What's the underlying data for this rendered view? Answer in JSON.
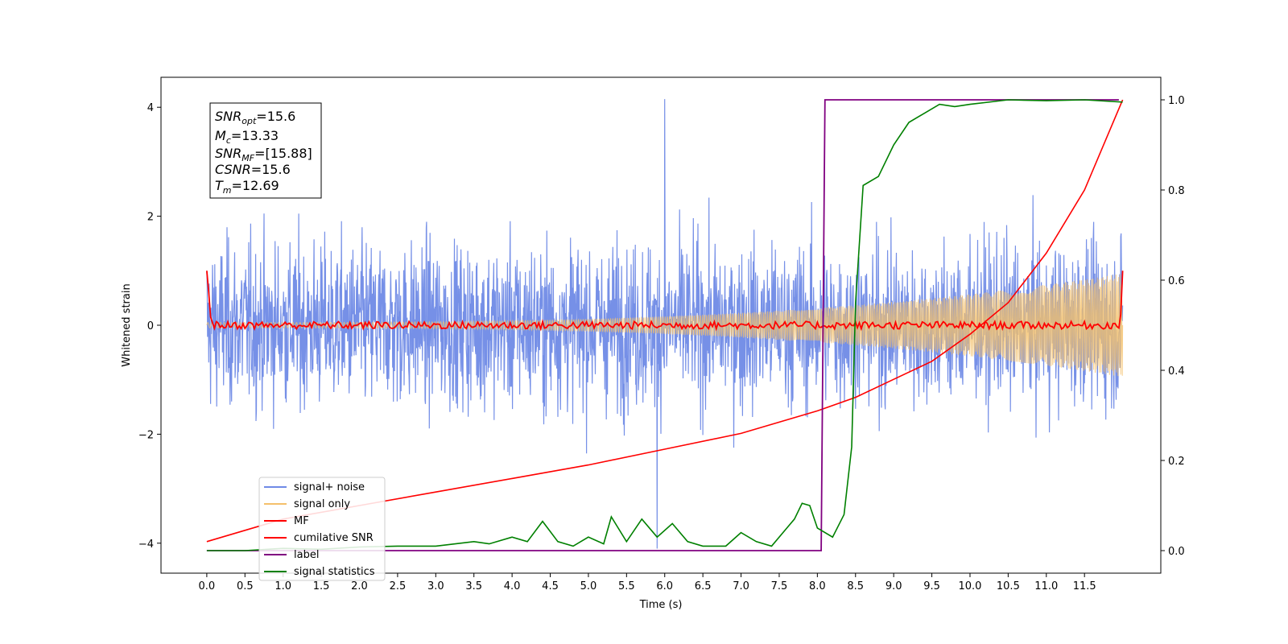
{
  "chart_data": {
    "type": "line",
    "xlabel": "Time (s)",
    "ylabel": "Whitened strain",
    "xlim": [
      -0.6,
      12.5
    ],
    "ylim": [
      -4.55,
      4.55
    ],
    "y2lim": [
      -0.05,
      1.05
    ],
    "x_ticks": [
      "0.0",
      "0.5",
      "1.0",
      "1.5",
      "2.0",
      "2.5",
      "3.0",
      "3.5",
      "4.0",
      "4.5",
      "5.0",
      "5.5",
      "6.0",
      "6.5",
      "7.0",
      "7.5",
      "8.0",
      "8.5",
      "9.0",
      "9.5",
      "10.0",
      "10.5",
      "11.0",
      "11.5"
    ],
    "y_ticks": [
      "4",
      "2",
      "0",
      "−2",
      "−4"
    ],
    "y2_ticks": [
      "1.0",
      "0.8",
      "0.6",
      "0.4",
      "0.2",
      "0.0"
    ],
    "annotation": [
      {
        "base": "SNR",
        "sub": "opt",
        "value": "=15.6"
      },
      {
        "base": "M",
        "sub": "c",
        "value": "=13.33"
      },
      {
        "base": "SNR",
        "sub": "MF",
        "value": "=[15.88]"
      },
      {
        "base": "CSNR",
        "sub": "",
        "value": "=15.6"
      },
      {
        "base": "T",
        "sub": "m",
        "value": "=12.69"
      }
    ],
    "legend": {
      "placement": "lower-left",
      "entries": [
        "signal+ noise",
        "signal only",
        "MF",
        "cumilative SNR",
        "label",
        "signal statistics"
      ]
    },
    "series": [
      {
        "name": "signal+ noise",
        "color": "#6f8ae6",
        "axis": "left",
        "x_range": [
          0,
          12.0
        ],
        "approx_std": 1.05,
        "max_peak": 4.15,
        "min_peak": -4.1
      },
      {
        "name": "signal only",
        "color": "#f4c06b",
        "axis": "left",
        "x_range": [
          0,
          12.0
        ],
        "envelope_start": 0.05,
        "envelope_end": 0.95
      },
      {
        "name": "MF",
        "color": "#ff0000",
        "axis": "left",
        "x_range": [
          0,
          12.0
        ],
        "start_value": 1.0,
        "end_value": 1.0,
        "baseline": 0.0
      },
      {
        "name": "cumilative SNR",
        "color": "#ff0000",
        "axis": "right",
        "x": [
          0.0,
          1.0,
          2.0,
          3.0,
          4.0,
          5.0,
          6.0,
          7.0,
          8.0,
          8.5,
          9.0,
          9.5,
          10.0,
          10.5,
          11.0,
          11.5,
          12.0
        ],
        "y": [
          0.02,
          0.07,
          0.1,
          0.13,
          0.16,
          0.19,
          0.225,
          0.26,
          0.31,
          0.34,
          0.38,
          0.42,
          0.48,
          0.55,
          0.66,
          0.8,
          1.0
        ]
      },
      {
        "name": "label",
        "color": "#800080",
        "axis": "right",
        "x": [
          0.0,
          8.05,
          8.1,
          11.95
        ],
        "y": [
          0.0,
          0.0,
          1.0,
          1.0
        ]
      },
      {
        "name": "signal statistics",
        "color": "#008000",
        "axis": "right",
        "x": [
          0.0,
          0.5,
          1.0,
          1.5,
          2.0,
          2.5,
          3.0,
          3.5,
          3.7,
          4.0,
          4.2,
          4.4,
          4.6,
          4.8,
          5.0,
          5.2,
          5.3,
          5.5,
          5.7,
          5.9,
          6.1,
          6.3,
          6.5,
          6.8,
          7.0,
          7.2,
          7.4,
          7.6,
          7.7,
          7.8,
          7.9,
          8.0,
          8.2,
          8.35,
          8.45,
          8.5,
          8.6,
          8.8,
          9.0,
          9.2,
          9.4,
          9.6,
          9.8,
          10.0,
          10.5,
          11.0,
          11.5,
          12.0
        ],
        "y": [
          0.0,
          0.0,
          0.005,
          0.003,
          0.008,
          0.01,
          0.01,
          0.02,
          0.015,
          0.03,
          0.02,
          0.065,
          0.02,
          0.01,
          0.03,
          0.015,
          0.075,
          0.02,
          0.07,
          0.03,
          0.06,
          0.02,
          0.01,
          0.01,
          0.04,
          0.02,
          0.01,
          0.05,
          0.07,
          0.105,
          0.1,
          0.05,
          0.03,
          0.08,
          0.23,
          0.55,
          0.81,
          0.83,
          0.9,
          0.95,
          0.97,
          0.99,
          0.985,
          0.99,
          1.0,
          0.998,
          1.0,
          0.995
        ]
      }
    ]
  }
}
